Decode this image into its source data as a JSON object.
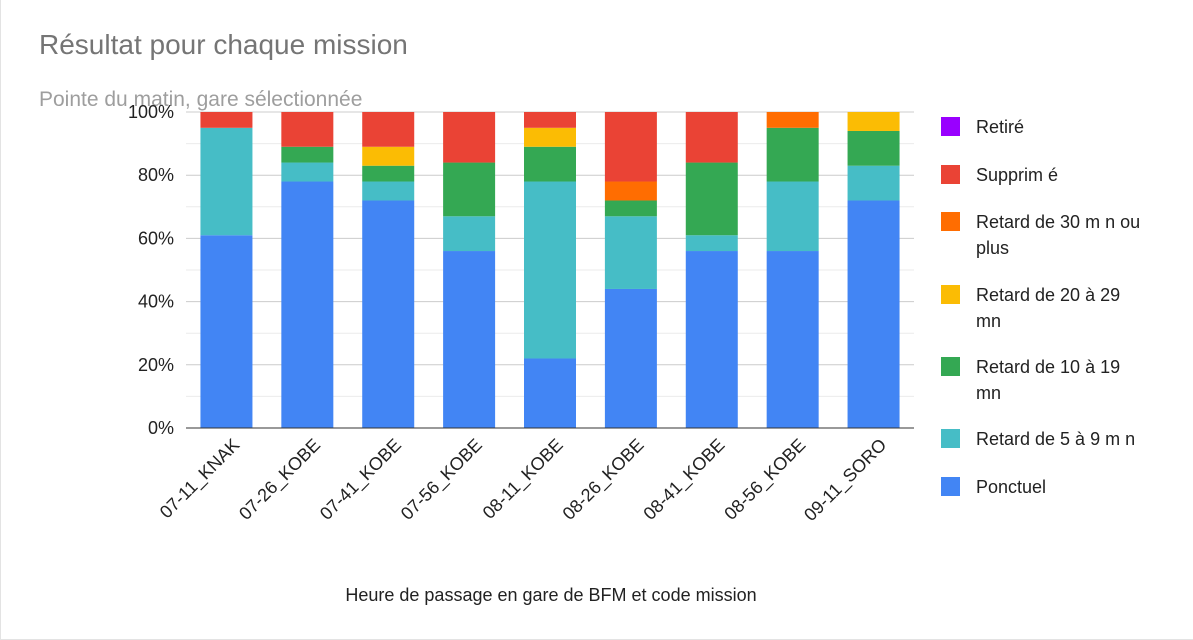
{
  "colors": {
    "grid": "#cccccc",
    "axis": "#333333",
    "title": "#757575",
    "subtitle": "#9e9e9e"
  },
  "chart_data": {
    "type": "bar",
    "stacked": true,
    "normalized": true,
    "title": "Résultat pour chaque mission",
    "subtitle": "Pointe du matin, gare sélectionnée",
    "xlabel": "Heure de passage en gare de BFM et code mission",
    "ylabel": "",
    "ylim": [
      0,
      100
    ],
    "yticks": [
      "0%",
      "20%",
      "40%",
      "60%",
      "80%",
      "100%"
    ],
    "grid": true,
    "legend_position": "right",
    "categories": [
      "07-11_KNAK",
      "07-26_KOBE",
      "07-41_KOBE",
      "07-56_KOBE",
      "08-11_KOBE",
      "08-26_KOBE",
      "08-41_KOBE",
      "08-56_KOBE",
      "09-11_SORO"
    ],
    "series": [
      {
        "name": "Ponctuel",
        "color": "#4285f4",
        "values": [
          61,
          78,
          72,
          56,
          22,
          44,
          56,
          56,
          72
        ]
      },
      {
        "name": "Retard de 5 à 9 mn",
        "color": "#46bdc6",
        "values": [
          34,
          6,
          6,
          11,
          56,
          23,
          5,
          22,
          11
        ]
      },
      {
        "name": "Retard de 10 à 19 mn",
        "color": "#34a853",
        "values": [
          0,
          5,
          5,
          17,
          11,
          5,
          23,
          17,
          11
        ]
      },
      {
        "name": "Retard de 20 à 29 mn",
        "color": "#fbbc04",
        "values": [
          0,
          0,
          6,
          0,
          6,
          0,
          0,
          0,
          6
        ]
      },
      {
        "name": "Retard de 30 mn ou plus",
        "color": "#ff6d01",
        "values": [
          0,
          0,
          0,
          0,
          0,
          6,
          0,
          5,
          0
        ]
      },
      {
        "name": "Supprimé",
        "color": "#ea4335",
        "values": [
          5,
          11,
          11,
          16,
          5,
          22,
          16,
          0,
          0
        ]
      },
      {
        "name": "Retiré",
        "color": "#9900ff",
        "values": [
          0,
          0,
          0,
          0,
          0,
          0,
          0,
          0,
          0
        ]
      }
    ],
    "legend": [
      {
        "lines": [
          "Retiré"
        ],
        "color": "#9900ff"
      },
      {
        "lines": [
          "Supprim é"
        ],
        "color": "#ea4335"
      },
      {
        "lines": [
          "Retard de 30 m n ou",
          "plus"
        ],
        "color": "#ff6d01"
      },
      {
        "lines": [
          "Retard de 20 à 29",
          "mn"
        ],
        "color": "#fbbc04"
      },
      {
        "lines": [
          "Retard de 10 à 19",
          "mn"
        ],
        "color": "#34a853"
      },
      {
        "lines": [
          "Retard de 5 à 9 m n"
        ],
        "color": "#46bdc6"
      },
      {
        "lines": [
          "Ponctuel"
        ],
        "color": "#4285f4"
      }
    ]
  }
}
